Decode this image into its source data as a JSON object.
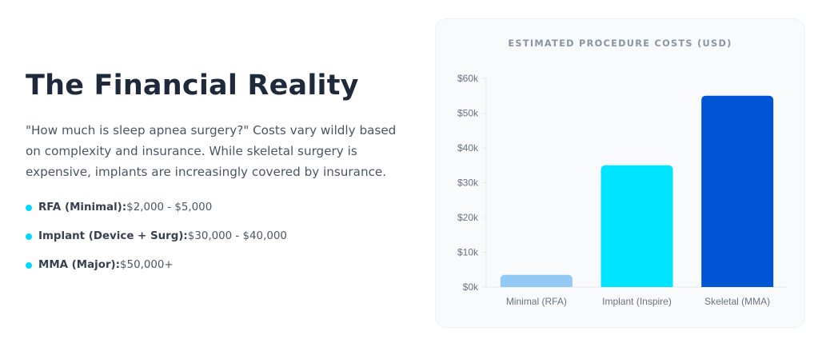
{
  "heading": "The Financial Reality",
  "intro": "\"How much is sleep apnea surgery?\" Costs vary wildly based on complexity and insurance. While skeletal surgery is expensive, implants are increasingly covered by insurance.",
  "costs": [
    {
      "label": "RFA (Minimal):",
      "value": "$2,000 - $5,000"
    },
    {
      "label": "Implant (Device + Surg):",
      "value": "$30,000 - $40,000"
    },
    {
      "label": "MMA (Major):",
      "value": "$50,000+"
    }
  ],
  "colors": {
    "bullet": "#00d9ff",
    "bars": [
      "#93c9f5",
      "#00e5ff",
      "#0055d4"
    ]
  },
  "chart_data": {
    "type": "bar",
    "title": "ESTIMATED PROCEDURE COSTS (USD)",
    "categories": [
      "Minimal (RFA)",
      "Implant (Inspire)",
      "Skeletal (MMA)"
    ],
    "values": [
      3500,
      35000,
      55000
    ],
    "ylim": [
      0,
      60000
    ],
    "yticks": [
      0,
      10000,
      20000,
      30000,
      40000,
      50000,
      60000
    ],
    "ytick_labels": [
      "$0k",
      "$10k",
      "$20k",
      "$30k",
      "$40k",
      "$50k",
      "$60k"
    ],
    "xlabel": "",
    "ylabel": "",
    "grid": false,
    "legend": false
  }
}
